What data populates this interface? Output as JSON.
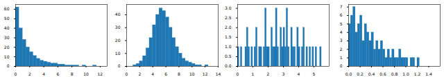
{
  "chart_data": [
    {
      "type": "histogram",
      "color": "#1f77b4",
      "bins": [
        0,
        0.5,
        1,
        1.5,
        2,
        2.5,
        3,
        3.5,
        4,
        4.5,
        5,
        5.5,
        6,
        6.5,
        7,
        7.5,
        8,
        8.5,
        9,
        9.5,
        10,
        10.5,
        11,
        11.5,
        12,
        12.5,
        13
      ],
      "values": [
        62,
        40,
        28,
        20,
        15,
        11,
        8,
        6,
        5,
        4,
        3,
        3,
        2,
        2,
        1,
        1,
        1,
        1,
        0,
        1,
        0,
        0,
        1,
        0,
        0,
        0
      ],
      "xlim": [
        0,
        13
      ],
      "xticks": [
        0,
        2,
        4,
        6,
        8,
        10,
        12
      ],
      "ylim": [
        0,
        65
      ],
      "yticks": [
        0,
        10,
        20,
        30,
        40,
        50,
        60
      ]
    },
    {
      "type": "histogram",
      "color": "#1f77b4",
      "bins": [
        0,
        0.5,
        1,
        1.5,
        2,
        2.5,
        3,
        3.5,
        4,
        4.5,
        5,
        5.5,
        6,
        6.5,
        7,
        7.5,
        8,
        8.5,
        9,
        9.5,
        10,
        10.5,
        11,
        11.5,
        12,
        12.5,
        13,
        13.5,
        14
      ],
      "values": [
        0,
        0,
        1,
        2,
        4,
        8,
        14,
        22,
        32,
        40,
        45,
        43,
        38,
        30,
        22,
        15,
        10,
        6,
        4,
        3,
        2,
        1,
        1,
        0,
        1,
        0,
        0,
        0
      ],
      "xlim": [
        0,
        14
      ],
      "xticks": [
        0,
        2,
        4,
        6,
        8,
        10,
        12,
        14
      ],
      "ylim": [
        0,
        48
      ],
      "yticks": [
        0,
        10,
        20,
        30,
        40
      ]
    },
    {
      "type": "histogram",
      "color": "#1f77b4",
      "bins": [
        0,
        0.1,
        0.2,
        0.3,
        0.4,
        0.5,
        0.6,
        0.7,
        0.8,
        0.9,
        1,
        1.1,
        1.2,
        1.3,
        1.4,
        1.5,
        1.6,
        1.7,
        1.8,
        1.9,
        2,
        2.1,
        2.2,
        2.3,
        2.4,
        2.5,
        2.6,
        2.7,
        2.8,
        2.9,
        3,
        3.1,
        3.2,
        3.3,
        3.4,
        3.5,
        3.6,
        3.7,
        3.8,
        3.9,
        4,
        4.1,
        4.2,
        4.3,
        4.4,
        4.5,
        4.6,
        4.7,
        4.8,
        4.9,
        5,
        5.1,
        5.2,
        5.3,
        5.4,
        5.5,
        5.6,
        5.7,
        5.8,
        5.9,
        6
      ],
      "values": [
        1,
        0,
        1,
        0,
        0,
        1,
        2,
        1,
        0,
        1,
        0,
        1,
        2,
        0,
        1,
        1,
        0,
        1,
        3,
        1,
        1,
        0,
        2,
        1,
        1,
        3,
        1,
        0,
        2,
        1,
        2,
        1,
        3,
        1,
        0,
        2,
        1,
        1,
        0,
        2,
        1,
        0,
        1,
        2,
        0,
        1,
        0,
        1,
        0,
        1,
        0,
        1,
        0,
        0,
        1,
        0,
        0,
        0,
        0,
        0
      ],
      "xlim": [
        0,
        6
      ],
      "xticks": [
        0,
        1,
        2,
        3,
        4,
        5
      ],
      "ylim": [
        0,
        3.2
      ],
      "yticks": [
        {
          "value": 0,
          "label": "0.0"
        },
        0.5,
        {
          "value": 1,
          "label": "1.0"
        },
        1.5,
        {
          "value": 2,
          "label": "2.0"
        },
        2.5,
        {
          "value": 3,
          "label": "3.0"
        }
      ]
    },
    {
      "type": "histogram",
      "color": "#1f77b4",
      "bins": [
        0,
        0.04,
        0.08,
        0.12,
        0.16,
        0.2,
        0.24,
        0.28,
        0.32,
        0.36,
        0.4,
        0.44,
        0.48,
        0.52,
        0.56,
        0.6,
        0.64,
        0.68,
        0.72,
        0.76,
        0.8,
        0.84,
        0.88,
        0.92,
        0.96,
        1,
        1.04,
        1.08,
        1.12,
        1.16,
        1.2,
        1.24,
        1.28,
        1.32,
        1.36,
        1.4,
        1.44,
        1.48,
        1.52,
        1.56,
        1.6
      ],
      "values": [
        5,
        6,
        7,
        4,
        5,
        6,
        3,
        5,
        4,
        3,
        4,
        2,
        3,
        2,
        3,
        2,
        1,
        2,
        1,
        2,
        1,
        1,
        2,
        1,
        1,
        1,
        0,
        1,
        1,
        0,
        1,
        0,
        0,
        0,
        0,
        0,
        0,
        0,
        0,
        0
      ],
      "xlim": [
        0,
        1.6
      ],
      "xticks": [
        {
          "value": 0,
          "label": "0.0"
        },
        0.2,
        0.4,
        0.6,
        0.8,
        {
          "value": 1,
          "label": "1.0"
        },
        1.2,
        1.4
      ],
      "ylim": [
        0,
        7.3
      ],
      "yticks": [
        0,
        1,
        2,
        3,
        4,
        5,
        6,
        7
      ]
    }
  ]
}
